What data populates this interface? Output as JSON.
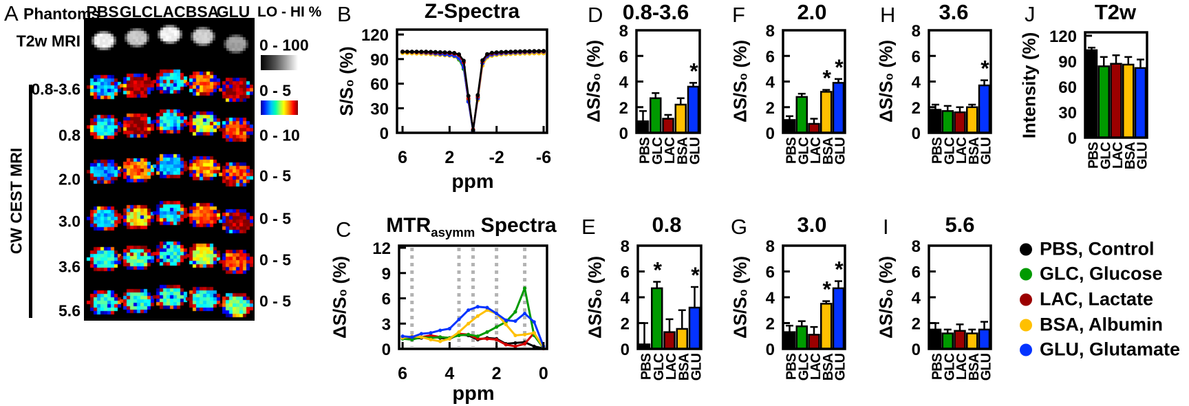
{
  "panel_a": {
    "label": "A",
    "title": "Phantoms",
    "columns": [
      "PBS",
      "GLC",
      "LAC",
      "BSA",
      "GLU"
    ],
    "t2w_row_label": "T2w MRI",
    "cest_row_labels": [
      "0.8-3.6",
      "0.8",
      "2.0",
      "3.0",
      "3.6",
      "5.6"
    ],
    "side_label": "CW CEST MRI",
    "scale_header": "LO - HI %",
    "scale_t2w": "0 - 100",
    "scale_cest": [
      "0 - 5",
      "0 - 10",
      "0 - 5",
      "0 - 5",
      "0 - 5",
      "0 - 5"
    ],
    "t2w_levels": [
      0.95,
      0.78,
      0.96,
      0.8,
      0.62
    ],
    "cest_levels": [
      [
        0.3,
        0.97,
        0.35,
        0.75,
        0.97
      ],
      [
        0.33,
        0.97,
        0.35,
        0.55,
        0.8
      ],
      [
        0.25,
        0.75,
        0.3,
        0.72,
        0.8
      ],
      [
        0.33,
        0.62,
        0.35,
        0.78,
        0.97
      ],
      [
        0.38,
        0.45,
        0.38,
        0.55,
        0.82
      ],
      [
        0.38,
        0.42,
        0.42,
        0.4,
        0.5
      ]
    ]
  },
  "chart_data": [
    {
      "type": "line",
      "panel": "B",
      "title": "Z-Spectra",
      "xlabel": "ppm",
      "ylabel": "S/S₀ (%)",
      "xlim": [
        6.47,
        -6.29
      ],
      "ylim": [
        0,
        126
      ],
      "x_ticks": [
        6,
        2,
        -2,
        -6
      ],
      "y_ticks": [
        0,
        30,
        60,
        90,
        120
      ],
      "x": [
        6,
        5.6,
        5.2,
        4.8,
        4.4,
        4,
        3.6,
        3.2,
        2.8,
        2.4,
        2,
        1.6,
        1.2,
        0.8,
        0.4,
        0,
        -0.4,
        -0.8,
        -1.2,
        -1.6,
        -2,
        -2.4,
        -2.8,
        -3.2,
        -3.6,
        -4,
        -4.4,
        -4.8,
        -5.2,
        -5.6,
        -6
      ],
      "series": [
        {
          "name": "GLC",
          "color": "#009a00",
          "values": [
            98.6,
            98.4,
            98.2,
            98,
            97.8,
            97.4,
            97,
            96.4,
            95.8,
            95.2,
            94.6,
            93.4,
            89.5,
            78,
            40,
            3,
            43,
            85,
            93.8,
            95.8,
            96.8,
            97.4,
            97.8,
            98,
            98.2,
            98.4,
            98.6,
            98.8,
            98.8,
            99,
            99
          ]
        },
        {
          "name": "BSA",
          "color": "#ffc000",
          "values": [
            97.4,
            97.2,
            97,
            96.8,
            96.6,
            96.4,
            96,
            95.4,
            95,
            94.6,
            94.2,
            93.2,
            90.5,
            80,
            38,
            2,
            40,
            82,
            92,
            94,
            95,
            95.6,
            96,
            96.2,
            96.4,
            96.6,
            96.8,
            96.8,
            97,
            97,
            97
          ]
        },
        {
          "name": "GLU",
          "color": "#0433ff",
          "values": [
            99,
            98.8,
            98.6,
            98.4,
            98.2,
            97.8,
            97.4,
            96.8,
            96.2,
            95.6,
            95,
            94,
            91,
            80,
            38,
            2,
            42,
            85,
            93.5,
            95.4,
            96.4,
            97,
            97.4,
            97.8,
            98,
            98.2,
            98.4,
            98.6,
            98.8,
            99,
            99
          ]
        },
        {
          "name": "LAC",
          "color": "#d40000",
          "values": [
            99,
            98.8,
            98.8,
            98.6,
            98.6,
            98.4,
            98.2,
            98,
            97.8,
            97.6,
            97.2,
            96.6,
            94.8,
            86,
            42,
            4,
            44,
            87,
            95.4,
            96.8,
            97.6,
            98,
            98.4,
            98.6,
            98.8,
            99,
            99,
            99.2,
            99.4,
            99.4,
            99.4
          ]
        },
        {
          "name": "PBS",
          "color": "#000000",
          "values": [
            99,
            99,
            99,
            99,
            99,
            99,
            98.8,
            98.6,
            98.4,
            98.2,
            98,
            97.4,
            95.8,
            88,
            45,
            3,
            46,
            88.5,
            96,
            97.6,
            98.2,
            98.6,
            98.8,
            99,
            99.2,
            99.4,
            99.5,
            99.6,
            99.8,
            99.8,
            100
          ]
        }
      ]
    },
    {
      "type": "line",
      "panel": "C",
      "title_main": "MTR",
      "title_sub": "asymm",
      "title_rest": " Spectra",
      "xlabel": "ppm",
      "ylabel": "ΔS/S₀ (%)",
      "xlim": [
        6.15,
        -0.15
      ],
      "ylim": [
        0,
        12.25
      ],
      "x_ticks": [
        6,
        4,
        2,
        0
      ],
      "y_ticks": [
        0,
        3,
        6,
        9,
        12
      ],
      "gridlines_ppm": [
        5.6,
        3.6,
        3.0,
        2.0,
        0.8
      ],
      "x": [
        6,
        5.6,
        5.2,
        4.8,
        4.4,
        4,
        3.6,
        3.2,
        2.8,
        2.4,
        2,
        1.6,
        1.2,
        0.8,
        0.4,
        0
      ],
      "series": [
        {
          "name": "PBS",
          "color": "#000000",
          "values": [
            1.4,
            1.2,
            1.3,
            1.5,
            1.3,
            1.2,
            1.7,
            1.6,
            1.1,
            1.3,
            1.2,
            0.6,
            0.7,
            0.8,
            0.3,
            0.05
          ]
        },
        {
          "name": "LAC",
          "color": "#d40000",
          "values": [
            1.3,
            1.2,
            1.4,
            1.6,
            1.4,
            1.3,
            1.8,
            1.7,
            1.2,
            1.2,
            1.1,
            0.5,
            0.3,
            0.6,
            1.9,
            0.05
          ]
        },
        {
          "name": "GLC",
          "color": "#009a00",
          "values": [
            1.2,
            1.1,
            1.4,
            1.3,
            1.4,
            1.3,
            1.6,
            1.7,
            1.5,
            2.0,
            2.6,
            3.2,
            4.4,
            7.2,
            1.6,
            0.1
          ]
        },
        {
          "name": "BSA",
          "color": "#ffc000",
          "values": [
            1.3,
            1.5,
            1.4,
            1.1,
            0.9,
            1.2,
            2.0,
            3.0,
            3.9,
            4.6,
            4.2,
            2.9,
            1.6,
            1.7,
            1.9,
            0.15
          ]
        },
        {
          "name": "GLU",
          "color": "#0433ff",
          "values": [
            1.5,
            1.4,
            1.8,
            1.9,
            2.2,
            2.4,
            3.5,
            4.6,
            5.0,
            4.9,
            4.2,
            3.4,
            3.3,
            4.2,
            3.2,
            0.3
          ]
        }
      ]
    },
    {
      "type": "bar",
      "panel": "D",
      "title": "0.8-3.6",
      "ylabel": "ΔS/S₀ (%)",
      "categories": [
        "PBS",
        "GLC",
        "LAC",
        "BSA",
        "GLU"
      ],
      "values": [
        0.9,
        2.7,
        1.1,
        2.2,
        3.6
      ],
      "errors": [
        0.8,
        0.4,
        0.3,
        0.5,
        0.3
      ],
      "significant": [
        0,
        0,
        0,
        0,
        1
      ],
      "ylim": [
        0,
        8
      ],
      "y_ticks": [
        0,
        2,
        4,
        6,
        8
      ]
    },
    {
      "type": "bar",
      "panel": "E",
      "title": "0.8",
      "ylabel": "ΔS/S₀ (%)",
      "categories": [
        "PBS",
        "GLC",
        "LAC",
        "BSA",
        "GLU"
      ],
      "values": [
        0.35,
        4.7,
        1.3,
        1.55,
        3.2
      ],
      "errors": [
        1.65,
        0.5,
        1.0,
        1.45,
        1.6
      ],
      "significant": [
        0,
        1,
        0,
        0,
        1
      ],
      "ylim": [
        0,
        8
      ],
      "y_ticks": [
        0,
        2,
        4,
        6,
        8
      ]
    },
    {
      "type": "bar",
      "panel": "F",
      "title": "2.0",
      "ylabel": "ΔS/S₀ (%)",
      "categories": [
        "PBS",
        "GLC",
        "LAC",
        "BSA",
        "GLU"
      ],
      "values": [
        1.0,
        2.8,
        0.7,
        3.2,
        3.9
      ],
      "errors": [
        0.3,
        0.25,
        0.4,
        0.15,
        0.3
      ],
      "significant": [
        0,
        0,
        0,
        1,
        1
      ],
      "ylim": [
        0,
        8
      ],
      "y_ticks": [
        0,
        2,
        4,
        6,
        8
      ]
    },
    {
      "type": "bar",
      "panel": "G",
      "title": "3.0",
      "ylabel": "ΔS/S₀ (%)",
      "categories": [
        "PBS",
        "GLC",
        "LAC",
        "BSA",
        "GLU"
      ],
      "values": [
        1.3,
        1.75,
        1.1,
        3.5,
        4.7
      ],
      "errors": [
        0.5,
        0.4,
        0.6,
        0.2,
        0.55
      ],
      "significant": [
        0,
        0,
        0,
        1,
        1
      ],
      "ylim": [
        0,
        8
      ],
      "y_ticks": [
        0,
        2,
        4,
        6,
        8
      ]
    },
    {
      "type": "bar",
      "panel": "H",
      "title": "3.6",
      "ylabel": "ΔS/S₀ (%)",
      "categories": [
        "PBS",
        "GLC",
        "LAC",
        "BSA",
        "GLU"
      ],
      "values": [
        1.8,
        1.7,
        1.6,
        2.0,
        3.7
      ],
      "errors": [
        0.4,
        0.4,
        0.4,
        0.2,
        0.4
      ],
      "significant": [
        0,
        0,
        0,
        0,
        1
      ],
      "ylim": [
        0,
        8
      ],
      "y_ticks": [
        0,
        2,
        4,
        6,
        8
      ]
    },
    {
      "type": "bar",
      "panel": "I",
      "title": "5.6",
      "ylabel": "ΔS/S₀ (%)",
      "categories": [
        "PBS",
        "GLC",
        "LAC",
        "BSA",
        "GLU"
      ],
      "values": [
        1.5,
        1.2,
        1.4,
        1.2,
        1.5
      ],
      "errors": [
        0.5,
        0.3,
        0.5,
        0.3,
        0.6
      ],
      "significant": [
        0,
        0,
        0,
        0,
        0
      ],
      "ylim": [
        0,
        8
      ],
      "y_ticks": [
        0,
        2,
        4,
        6,
        8
      ]
    },
    {
      "type": "bar",
      "panel": "J",
      "title": "T2w",
      "ylabel": "Intensity (%)",
      "categories": [
        "PBS",
        "GLC",
        "LAC",
        "BSA",
        "GLU"
      ],
      "values": [
        103,
        84,
        87,
        86,
        82
      ],
      "errors": [
        3,
        11,
        10,
        9,
        10
      ],
      "significant": [
        0,
        0,
        0,
        0,
        0
      ],
      "ylim": [
        0,
        124
      ],
      "y_ticks": [
        0,
        30,
        60,
        90,
        120
      ]
    }
  ],
  "legend": {
    "items": [
      {
        "label": "PBS, Control",
        "color": "#000000"
      },
      {
        "label": "GLC, Glucose",
        "color": "#009a00"
      },
      {
        "label": "LAC, Lactate",
        "color": "#9b0000"
      },
      {
        "label": "BSA, Albumin",
        "color": "#ffc000"
      },
      {
        "label": "GLU, Glutamate",
        "color": "#0433ff"
      }
    ]
  }
}
